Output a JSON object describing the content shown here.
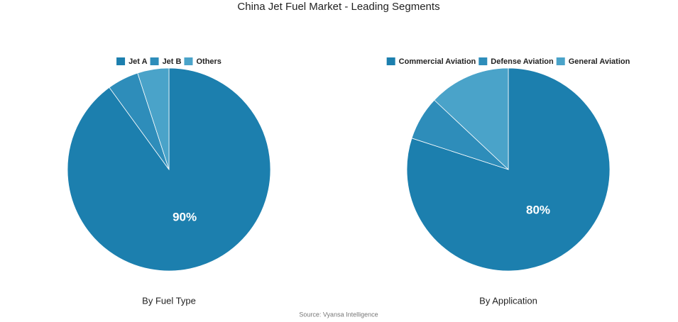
{
  "title": "China Jet Fuel Market - Leading Segments",
  "source": "Source: Vyansa Intelligence",
  "chart_data": [
    {
      "type": "pie",
      "title": "By Fuel Type",
      "categories": [
        "Jet A",
        "Jet B",
        "Others"
      ],
      "values": [
        90,
        5,
        5
      ],
      "value_labels": [
        "90%",
        null,
        null
      ],
      "colors": [
        "#1c7fae",
        "#2e8dba",
        "#4aa3c9"
      ]
    },
    {
      "type": "pie",
      "title": "By Application",
      "categories": [
        "Commercial Aviation",
        "Defense Aviation",
        "General Aviation"
      ],
      "values": [
        80,
        7,
        13
      ],
      "value_labels": [
        "80%",
        null,
        null
      ],
      "colors": [
        "#1c7fae",
        "#2e8dba",
        "#4aa3c9"
      ]
    }
  ]
}
